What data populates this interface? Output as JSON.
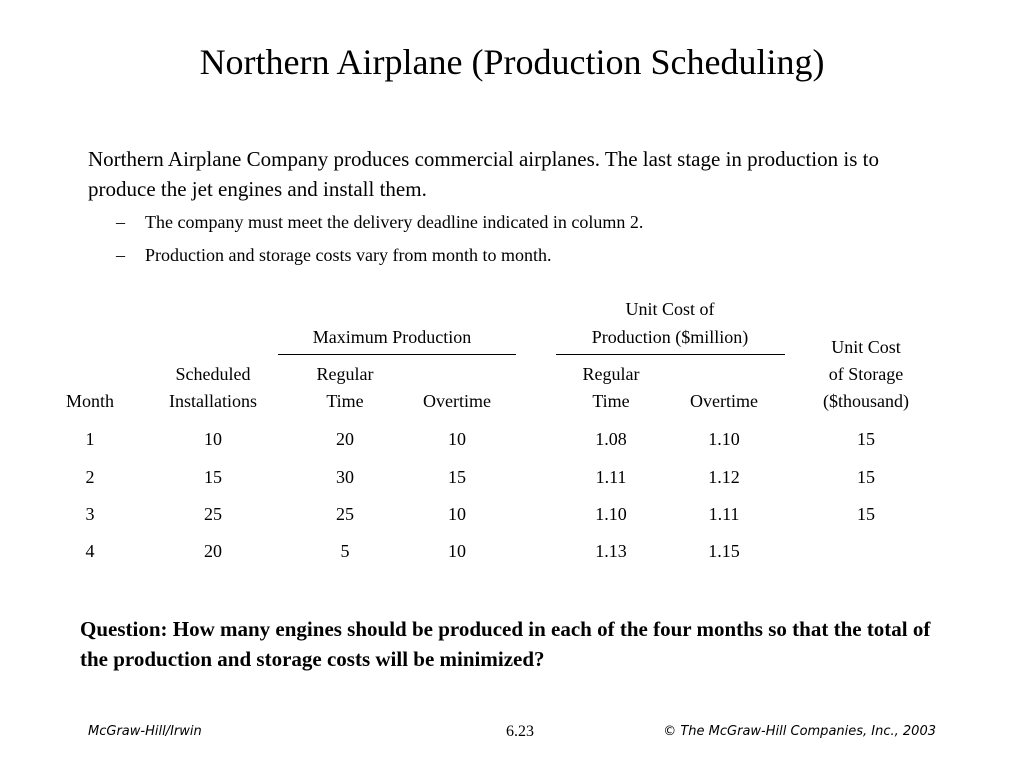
{
  "title": "Northern Airplane (Production Scheduling)",
  "intro": "Northern Airplane Company produces commercial airplanes. The last stage in production is to produce the jet engines and install them.",
  "bullets": [
    {
      "dash": "–",
      "text": "The company must meet the delivery deadline indicated in column 2."
    },
    {
      "dash": "–",
      "text": "Production and storage costs vary from month to month."
    }
  ],
  "table": {
    "group_headers": {
      "max_production": "Maximum Production",
      "unit_cost_production_line1": "Unit Cost of",
      "unit_cost_production_line2": "Production ($million)",
      "unit_cost_storage_line1": "Unit Cost",
      "unit_cost_storage_line2": "of Storage",
      "unit_cost_storage_line3": "($thousand)"
    },
    "columns": {
      "month": "Month",
      "scheduled_line1": "Scheduled",
      "scheduled_line2": "Installations",
      "regular_line1": "Regular",
      "regular_line2": "Time",
      "overtime": "Overtime",
      "cost_regular_line1": "Regular",
      "cost_regular_line2": "Time",
      "cost_overtime": "Overtime"
    },
    "rows": [
      {
        "month": "1",
        "scheduled": "10",
        "max_regular": "20",
        "max_overtime": "10",
        "cost_regular": "1.08",
        "cost_overtime": "1.10",
        "storage": "15"
      },
      {
        "month": "2",
        "scheduled": "15",
        "max_regular": "30",
        "max_overtime": "15",
        "cost_regular": "1.11",
        "cost_overtime": "1.12",
        "storage": "15"
      },
      {
        "month": "3",
        "scheduled": "25",
        "max_regular": "25",
        "max_overtime": "10",
        "cost_regular": "1.10",
        "cost_overtime": "1.11",
        "storage": "15"
      },
      {
        "month": "4",
        "scheduled": "20",
        "max_regular": "5",
        "max_overtime": "10",
        "cost_regular": "1.13",
        "cost_overtime": "1.15",
        "storage": ""
      }
    ]
  },
  "question": "Question: How many engines should be produced in each of the four months so that the total of the production and storage costs will be minimized?",
  "footer": {
    "left": "McGraw-Hill/Irwin",
    "center": "6.23",
    "right": "© The McGraw-Hill Companies, Inc., 2003"
  }
}
